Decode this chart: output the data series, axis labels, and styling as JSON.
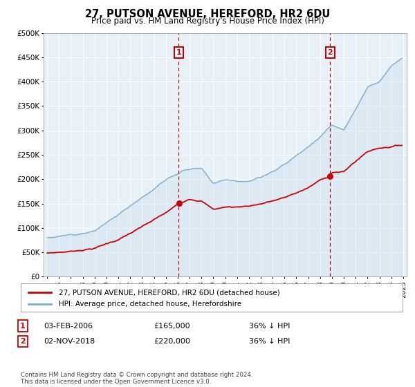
{
  "title": "27, PUTSON AVENUE, HEREFORD, HR2 6DU",
  "subtitle": "Price paid vs. HM Land Registry's House Price Index (HPI)",
  "legend_line1": "27, PUTSON AVENUE, HEREFORD, HR2 6DU (detached house)",
  "legend_line2": "HPI: Average price, detached house, Herefordshire",
  "annotation1_date": "03-FEB-2006",
  "annotation1_price": "£165,000",
  "annotation1_note": "36% ↓ HPI",
  "annotation2_date": "02-NOV-2018",
  "annotation2_price": "£220,000",
  "annotation2_note": "36% ↓ HPI",
  "footer": "Contains HM Land Registry data © Crown copyright and database right 2024.\nThis data is licensed under the Open Government Licence v3.0.",
  "red_color": "#cc0000",
  "blue_color": "#7aadce",
  "blue_fill": "#c8dce8",
  "background_color": "#e8f0f8",
  "ylim": [
    0,
    500000
  ],
  "yticks": [
    0,
    50000,
    100000,
    150000,
    200000,
    250000,
    300000,
    350000,
    400000,
    450000,
    500000
  ],
  "sale1_year": 2006.09,
  "sale2_year": 2018.84,
  "sale1_price": 165000,
  "sale2_price": 220000,
  "xmin": 1994.7,
  "xmax": 2025.3
}
